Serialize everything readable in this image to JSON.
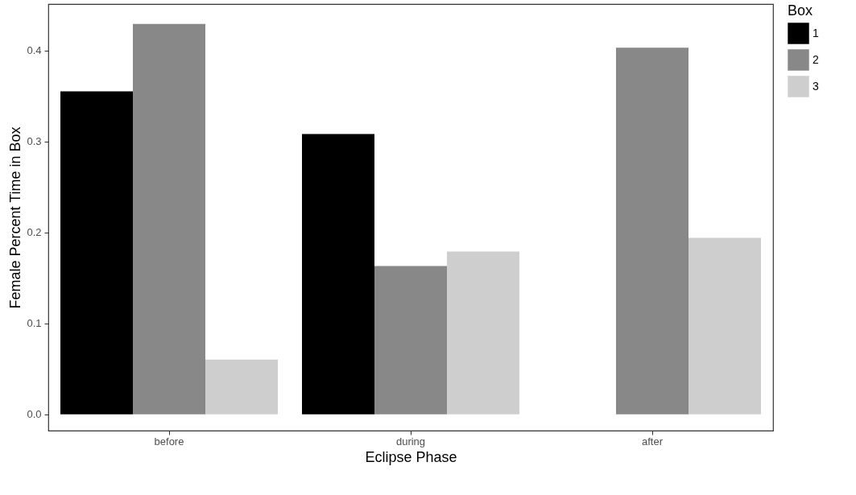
{
  "chart_data": {
    "type": "bar",
    "xlabel": "Eclipse Phase",
    "ylabel": "Female Percent Time in Box",
    "legend_title": "Box",
    "categories": [
      "before",
      "during",
      "after"
    ],
    "series": [
      {
        "name": "1",
        "color": "#000000",
        "values": [
          0.355,
          0.308,
          null
        ]
      },
      {
        "name": "2",
        "color": "#888888",
        "values": [
          0.429,
          0.163,
          0.403
        ]
      },
      {
        "name": "3",
        "color": "#cecece",
        "values": [
          0.06,
          0.179,
          0.194
        ]
      }
    ],
    "ylim": [
      -0.018,
      0.451
    ],
    "yticks": [
      {
        "value": 0,
        "label": "0.0"
      },
      {
        "value": 0.1,
        "label": "0.1"
      },
      {
        "value": 0.2,
        "label": "0.2"
      },
      {
        "value": 0.3,
        "label": "0.3"
      },
      {
        "value": 0.4,
        "label": "0.4"
      }
    ],
    "grid": false,
    "legend": "right"
  }
}
